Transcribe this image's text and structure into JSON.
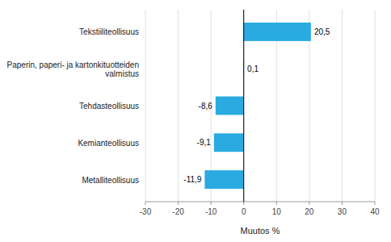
{
  "chart_data": {
    "type": "bar",
    "orientation": "horizontal",
    "categories": [
      "Metalliteollisuus",
      "Kemianteollisuus",
      "Tehdasteollisuus",
      "Paperin, paperi- ja kartonkituotteiden valmistus",
      "Tekstiiliteollisuus"
    ],
    "values": [
      -11.9,
      -9.1,
      -8.6,
      0.1,
      20.5
    ],
    "value_labels": [
      "-11,9",
      "-9,1",
      "-8,6",
      "0,1",
      "20,5"
    ],
    "data_labels": true,
    "color": "#29abe2",
    "xlabel": "Muutos %",
    "xlim": [
      -30,
      40
    ],
    "xticks": [
      -30,
      -20,
      -10,
      0,
      10,
      20,
      30,
      40
    ],
    "grid": true
  }
}
